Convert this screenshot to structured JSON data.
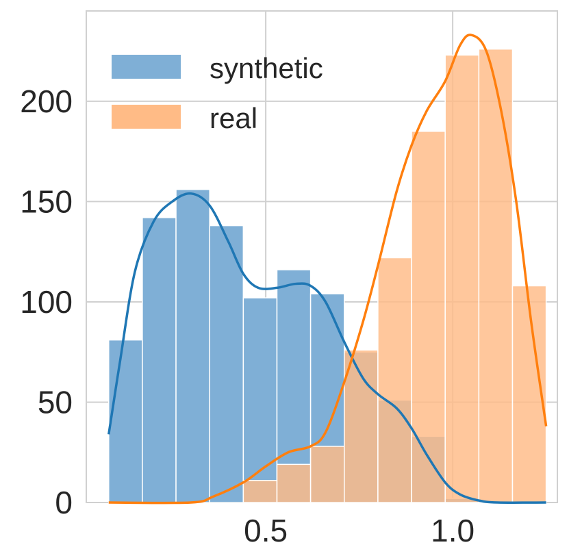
{
  "chart_data": {
    "type": "histogram",
    "xlim": [
      0.02,
      1.28
    ],
    "ylim": [
      0,
      245
    ],
    "x_ticks": [
      0.5,
      1.0
    ],
    "x_tick_labels": [
      "0.5",
      "1.0"
    ],
    "y_ticks": [
      0,
      50,
      100,
      150,
      200
    ],
    "y_tick_labels": [
      "0",
      "50",
      "100",
      "150",
      "200"
    ],
    "grid": true,
    "legend_position": "top-left",
    "bin_edges": [
      0.08,
      0.17,
      0.26,
      0.35,
      0.44,
      0.53,
      0.62,
      0.71,
      0.8,
      0.89,
      0.98,
      1.07,
      1.16,
      1.25
    ],
    "series": [
      {
        "name": "synthetic",
        "color": "#1f77b4",
        "bar_color": "#7fafd6",
        "values": [
          81,
          142,
          156,
          138,
          102,
          116,
          104,
          75,
          51,
          33,
          2,
          0,
          0
        ],
        "kde": [
          [
            0.08,
            34
          ],
          [
            0.11,
            70
          ],
          [
            0.15,
            115
          ],
          [
            0.2,
            140
          ],
          [
            0.25,
            150
          ],
          [
            0.3,
            154
          ],
          [
            0.35,
            148
          ],
          [
            0.4,
            130
          ],
          [
            0.44,
            114
          ],
          [
            0.48,
            107
          ],
          [
            0.53,
            107
          ],
          [
            0.58,
            109
          ],
          [
            0.62,
            108
          ],
          [
            0.66,
            100
          ],
          [
            0.71,
            80
          ],
          [
            0.76,
            62
          ],
          [
            0.8,
            54
          ],
          [
            0.85,
            47
          ],
          [
            0.89,
            37
          ],
          [
            0.93,
            24
          ],
          [
            0.98,
            10
          ],
          [
            1.02,
            4
          ],
          [
            1.07,
            1
          ],
          [
            1.12,
            0
          ],
          [
            1.25,
            0
          ]
        ]
      },
      {
        "name": "real",
        "color": "#ff7f0e",
        "bar_color": "#ffbb86",
        "values": [
          0,
          0,
          0,
          0,
          11,
          19,
          28,
          76,
          122,
          185,
          223,
          226,
          108
        ],
        "kde": [
          [
            0.08,
            0
          ],
          [
            0.3,
            0
          ],
          [
            0.36,
            3
          ],
          [
            0.44,
            10
          ],
          [
            0.5,
            18
          ],
          [
            0.56,
            25
          ],
          [
            0.62,
            28
          ],
          [
            0.66,
            35
          ],
          [
            0.71,
            60
          ],
          [
            0.76,
            90
          ],
          [
            0.8,
            118
          ],
          [
            0.85,
            155
          ],
          [
            0.89,
            178
          ],
          [
            0.93,
            195
          ],
          [
            0.98,
            210
          ],
          [
            1.02,
            228
          ],
          [
            1.05,
            233
          ],
          [
            1.09,
            225
          ],
          [
            1.13,
            195
          ],
          [
            1.17,
            150
          ],
          [
            1.21,
            90
          ],
          [
            1.25,
            38
          ]
        ]
      }
    ]
  }
}
